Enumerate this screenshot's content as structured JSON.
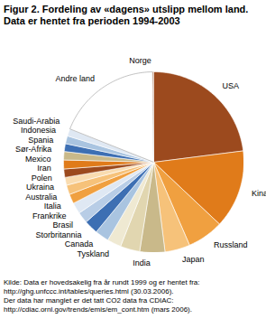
{
  "chart_data": {
    "type": "pie",
    "title": "Figur 2. Fordeling av «dagens» utslipp mellom land. Data er hentet fra perioden 1994-2003",
    "categories": [
      "USA",
      "Kina",
      "Russland",
      "Japan",
      "India",
      "Tyskland",
      "Canada",
      "Storbritannia",
      "Brasil",
      "Frankrike",
      "Italia",
      "Australia",
      "Ukraina",
      "Polen",
      "Iran",
      "Mexico",
      "Sør-Afrika",
      "Spania",
      "Indonesia",
      "Saudi-Arabia",
      "Andre land",
      "Norge"
    ],
    "values": [
      23,
      14,
      6.5,
      4.5,
      4.5,
      3.5,
      2.5,
      2.5,
      2.5,
      2,
      2,
      1.7,
      1.7,
      1.4,
      1.5,
      1.6,
      1.5,
      1.4,
      1.4,
      1.3,
      18.8,
      0.2
    ],
    "colors": [
      "#9c4a1e",
      "#e07b1a",
      "#f0a040",
      "#f6c27a",
      "#c9b98a",
      "#e1d6b0",
      "#efe9d2",
      "#a9c4e0",
      "#3d6fb3",
      "#b8cde6",
      "#dfe8f3",
      "#f0a040",
      "#f6c27a",
      "#f9dcb0",
      "#9c4a1e",
      "#e07b1a",
      "#c9b98a",
      "#3d6fb3",
      "#a9c4e0",
      "#dfe8f3",
      "#ffffff",
      "#9c4a1e"
    ],
    "caption": [
      "Kilde: Data er hovedsakelig fra år rundt 1999 og er hentet fra:",
      "http://ghg.unfccc.int/tables/queries.html (30.03.2006).",
      "Der data har manglet er det tatt CO2 data fra CDIAC:",
      "http://cdiac.ornl.gov/trends/emis/em_cont.htm (mars 2006)."
    ]
  }
}
